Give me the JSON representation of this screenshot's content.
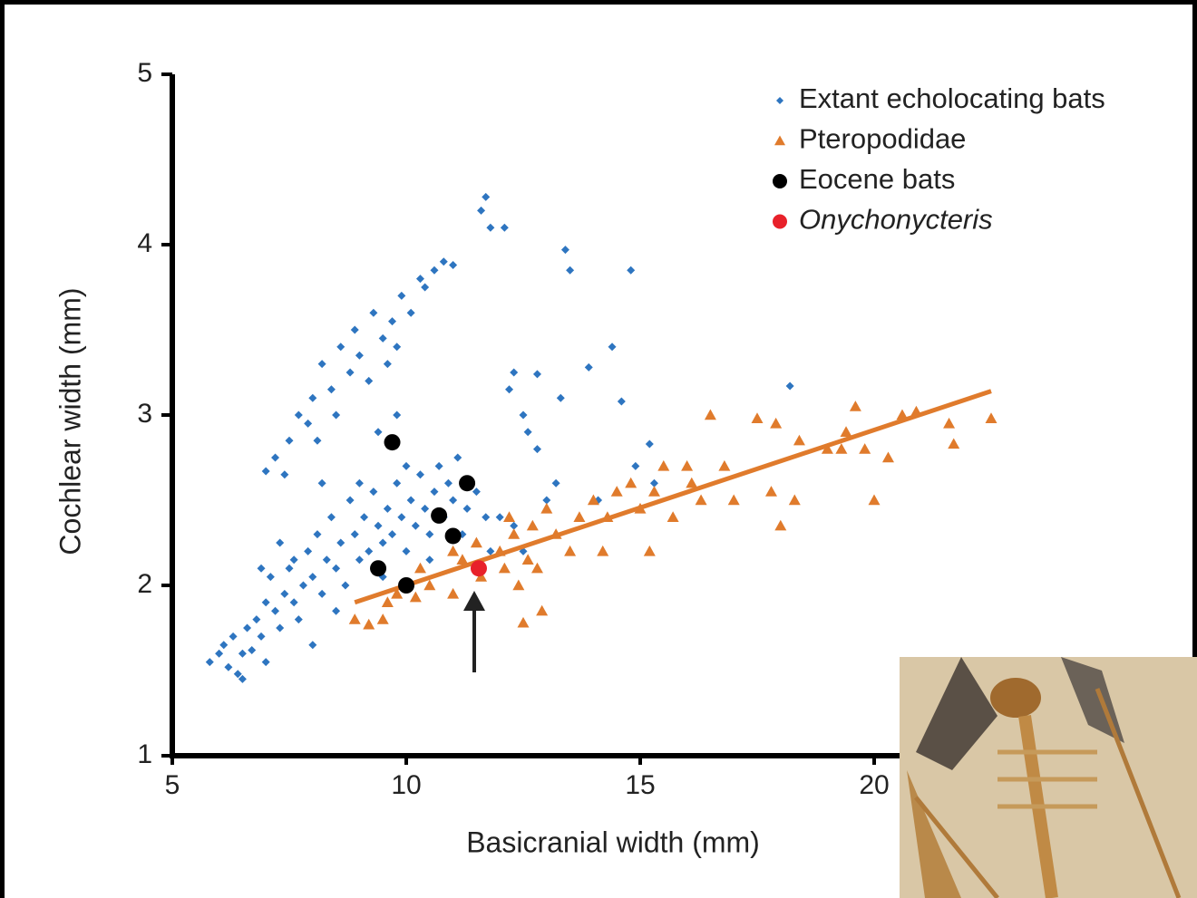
{
  "chart_data": {
    "type": "scatter",
    "xlabel": "Basicranial  width (mm)",
    "ylabel": "Cochlear  width (mm)",
    "xlim": [
      5,
      22.5
    ],
    "ylim": [
      1,
      5
    ],
    "xticks": [
      5,
      10,
      15,
      20
    ],
    "yticks": [
      1,
      2,
      3,
      4,
      5
    ],
    "series": [
      {
        "name": "Extant echolocating bats",
        "color": "#2e75c0",
        "marker": "diamond",
        "x": [
          5.8,
          6.0,
          6.1,
          6.2,
          6.3,
          6.4,
          6.5,
          6.6,
          6.5,
          6.7,
          6.8,
          6.9,
          7.0,
          7.0,
          7.1,
          7.2,
          7.3,
          7.4,
          7.5,
          7.6,
          7.7,
          7.8,
          7.9,
          8.0,
          8.0,
          8.1,
          8.2,
          8.3,
          8.4,
          8.5,
          8.6,
          8.7,
          8.8,
          8.9,
          9.0,
          9.1,
          9.2,
          9.3,
          9.4,
          9.5,
          9.6,
          9.7,
          9.8,
          9.9,
          10.0,
          10.1,
          10.2,
          10.3,
          10.4,
          10.5,
          10.6,
          10.7,
          10.8,
          10.9,
          11.0,
          11.1,
          11.3,
          11.5,
          11.7,
          12.0,
          12.3,
          6.9,
          7.3,
          7.6,
          8.2,
          8.5,
          9.0,
          9.5,
          10.0,
          10.5,
          11.2,
          12.5,
          13.2,
          11.8,
          7.0,
          7.2,
          7.4,
          7.5,
          7.7,
          7.9,
          8.0,
          8.1,
          8.2,
          8.4,
          8.5,
          8.6,
          8.8,
          8.9,
          9.0,
          9.2,
          9.3,
          9.5,
          9.6,
          9.7,
          9.8,
          9.9,
          10.1,
          10.3,
          10.4,
          10.6,
          11.0,
          10.8,
          9.4,
          9.8,
          11.7,
          11.8,
          12.1,
          11.6,
          13.4,
          13.5,
          14.8,
          14.4,
          13.9,
          12.3,
          12.8,
          12.2,
          12.5,
          12.6,
          13.3,
          14.6,
          18.2,
          15.2,
          14.9,
          15.3,
          14.1,
          13.0,
          12.8
        ],
        "values": [
          1.55,
          1.6,
          1.65,
          1.52,
          1.7,
          1.48,
          1.6,
          1.75,
          1.45,
          1.62,
          1.8,
          1.7,
          1.9,
          1.55,
          2.05,
          1.85,
          1.75,
          1.95,
          2.1,
          1.9,
          1.8,
          2.0,
          2.2,
          2.05,
          1.65,
          2.3,
          1.95,
          2.15,
          2.4,
          2.1,
          2.25,
          2.0,
          2.5,
          2.3,
          2.15,
          2.4,
          2.2,
          2.55,
          2.35,
          2.25,
          2.45,
          2.3,
          2.6,
          2.4,
          2.2,
          2.5,
          2.35,
          2.65,
          2.45,
          2.3,
          2.55,
          2.7,
          2.4,
          2.6,
          2.5,
          2.75,
          2.45,
          2.55,
          2.4,
          2.4,
          2.35,
          2.1,
          2.25,
          2.15,
          2.6,
          1.85,
          2.6,
          2.05,
          2.7,
          2.15,
          2.3,
          2.2,
          2.6,
          2.2,
          2.67,
          2.75,
          2.65,
          2.85,
          3.0,
          2.95,
          3.1,
          2.85,
          3.3,
          3.15,
          3.0,
          3.4,
          3.25,
          3.5,
          3.35,
          3.2,
          3.6,
          3.45,
          3.3,
          3.55,
          3.4,
          3.7,
          3.6,
          3.8,
          3.75,
          3.85,
          3.88,
          3.9,
          2.9,
          3.0,
          4.28,
          4.1,
          4.1,
          4.2,
          3.97,
          3.85,
          3.85,
          3.4,
          3.28,
          3.25,
          3.24,
          3.15,
          3.0,
          2.9,
          3.1,
          3.08,
          3.17,
          2.83,
          2.7,
          2.6,
          2.5,
          2.5,
          2.8
        ]
      },
      {
        "name": "Pteropodidae",
        "color": "#e07b2c",
        "marker": "triangle",
        "x": [
          8.9,
          9.2,
          9.5,
          9.6,
          9.8,
          10.0,
          10.2,
          10.5,
          11.0,
          11.0,
          11.2,
          11.5,
          12.0,
          12.1,
          12.3,
          12.4,
          12.5,
          12.6,
          12.7,
          12.8,
          12.9,
          13.0,
          13.2,
          13.5,
          13.7,
          14.0,
          14.2,
          14.5,
          14.8,
          15.0,
          15.2,
          15.5,
          15.7,
          16.0,
          16.1,
          16.3,
          16.5,
          16.8,
          17.0,
          17.5,
          17.8,
          17.9,
          18.0,
          18.4,
          18.3,
          19.0,
          19.3,
          19.4,
          19.6,
          19.8,
          20.0,
          20.3,
          20.6,
          20.9,
          21.6,
          21.7,
          22.5,
          15.3,
          14.3,
          12.2,
          10.3,
          11.6
        ],
        "values": [
          1.8,
          1.77,
          1.8,
          1.9,
          1.95,
          2.0,
          1.93,
          2.0,
          1.95,
          2.2,
          2.15,
          2.25,
          2.2,
          2.1,
          2.3,
          2.0,
          1.78,
          2.15,
          2.35,
          2.1,
          1.85,
          2.45,
          2.3,
          2.2,
          2.4,
          2.5,
          2.2,
          2.55,
          2.6,
          2.45,
          2.2,
          2.7,
          2.4,
          2.7,
          2.6,
          2.5,
          3.0,
          2.7,
          2.5,
          2.98,
          2.55,
          2.95,
          2.35,
          2.85,
          2.5,
          2.8,
          2.8,
          2.9,
          3.05,
          2.8,
          2.5,
          2.75,
          3.0,
          3.02,
          2.95,
          2.83,
          2.98,
          2.55,
          2.4,
          2.4,
          2.1,
          2.05
        ]
      },
      {
        "name": "Eocene bats",
        "color": "#000000",
        "marker": "circle",
        "x": [
          9.7,
          11.3,
          10.7,
          11.0,
          9.4,
          10.0
        ],
        "values": [
          2.84,
          2.6,
          2.41,
          2.29,
          2.1,
          2.0
        ]
      },
      {
        "name": "Onychonycteris",
        "color": "#e8212a",
        "marker": "circle",
        "italic": true,
        "x": [
          11.55
        ],
        "values": [
          2.1
        ]
      }
    ],
    "fit": {
      "color": "#e07b2c",
      "x": [
        8.9,
        22.5
      ],
      "values": [
        1.9,
        3.14
      ]
    }
  }
}
